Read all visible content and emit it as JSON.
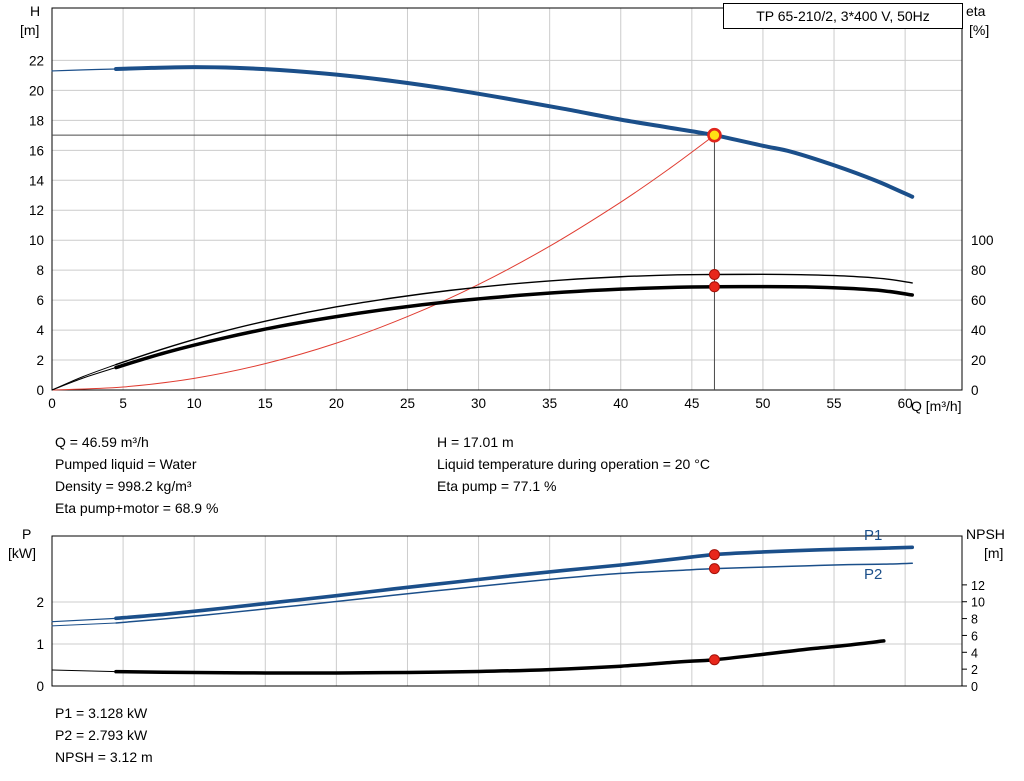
{
  "title_box": {
    "text": "TP 65-210/2, 3*400 V, 50Hz"
  },
  "annotations": {
    "col1": [
      "Q = 46.59 m³/h",
      "Pumped liquid = Water",
      "Density = 998.2 kg/m³",
      "Eta pump+motor = 68.9 %"
    ],
    "col2": [
      "H = 17.01 m",
      "Liquid temperature during operation = 20 °C",
      "Eta pump = 77.1 %"
    ],
    "bottom": [
      "P1 = 3.128 kW",
      "P2 = 2.793 kW",
      "NPSH = 3.12 m"
    ]
  },
  "chart_data": [
    {
      "type": "line",
      "name": "qh-efficiency-chart",
      "title": "TP 65-210/2, 3*400 V, 50Hz",
      "xlabel": "Q [m³/h]",
      "ylabel_left": [
        "H",
        "[m]"
      ],
      "ylabel_right": [
        "eta",
        "[%]"
      ],
      "xlim": [
        0,
        64
      ],
      "ylim_left": [
        0,
        25.5
      ],
      "ylim_right": [
        0,
        255
      ],
      "x_ticks": [
        0,
        5,
        10,
        15,
        20,
        25,
        30,
        35,
        40,
        45,
        50,
        55,
        60
      ],
      "y_ticks_left": [
        0,
        2,
        4,
        6,
        8,
        10,
        12,
        14,
        16,
        18,
        20,
        22
      ],
      "y_ticks_right": [
        0,
        20,
        40,
        60,
        80,
        100
      ],
      "show_x_labels": true,
      "grid": true,
      "duty_point": {
        "Q": 46.59,
        "H": 17.01,
        "eta_pump": 77.1,
        "eta_pump_motor": 68.9
      },
      "series": [
        {
          "name": "head-curve-lead",
          "axis": "left",
          "color": "#1b4f8a",
          "width": 1.2,
          "points": [
            [
              0,
              21.3
            ],
            [
              2.2,
              21.37
            ],
            [
              4.5,
              21.43
            ]
          ]
        },
        {
          "name": "head-curve",
          "axis": "left",
          "color": "#1b4f8a",
          "width": 4,
          "points": [
            [
              4.5,
              21.43
            ],
            [
              7,
              21.5
            ],
            [
              10,
              21.55
            ],
            [
              13,
              21.5
            ],
            [
              16,
              21.36
            ],
            [
              20,
              21.05
            ],
            [
              24,
              20.62
            ],
            [
              28,
              20.08
            ],
            [
              32,
              19.45
            ],
            [
              36,
              18.77
            ],
            [
              40,
              18.05
            ],
            [
              43.5,
              17.5
            ],
            [
              46.59,
              17.01
            ],
            [
              50,
              16.3
            ],
            [
              52,
              15.9
            ],
            [
              55,
              15.0
            ],
            [
              58,
              13.95
            ],
            [
              60.5,
              12.9
            ]
          ]
        },
        {
          "name": "system-curve",
          "axis": "left",
          "color": "#e03c31",
          "width": 1,
          "points": [
            [
              0,
              0
            ],
            [
              5,
              0.2
            ],
            [
              10,
              0.78
            ],
            [
              15,
              1.76
            ],
            [
              20,
              3.13
            ],
            [
              25,
              4.9
            ],
            [
              30,
              7.05
            ],
            [
              35,
              9.6
            ],
            [
              40,
              12.54
            ],
            [
              43.5,
              14.83
            ],
            [
              46.59,
              17.01
            ]
          ]
        },
        {
          "name": "eta-pump-curve-lead",
          "axis": "right",
          "color": "#000000",
          "width": 1,
          "points": [
            [
              0,
              0
            ],
            [
              2.2,
              9
            ],
            [
              4.5,
              17
            ]
          ]
        },
        {
          "name": "eta-pump-curve",
          "axis": "right",
          "color": "#000000",
          "width": 1.4,
          "points": [
            [
              4.5,
              17
            ],
            [
              8,
              28
            ],
            [
              12,
              39
            ],
            [
              16,
              48
            ],
            [
              20,
              55.5
            ],
            [
              24,
              61.5
            ],
            [
              28,
              66.5
            ],
            [
              32,
              70.5
            ],
            [
              36,
              73.5
            ],
            [
              40,
              75.6
            ],
            [
              44,
              76.9
            ],
            [
              46.59,
              77.1
            ],
            [
              50,
              77.2
            ],
            [
              53,
              76.9
            ],
            [
              56,
              76
            ],
            [
              58.5,
              74.3
            ],
            [
              60.5,
              71.5
            ]
          ]
        },
        {
          "name": "eta-pump-motor-curve-lead",
          "axis": "right",
          "color": "#000000",
          "width": 1,
          "points": [
            [
              0,
              0
            ],
            [
              2.2,
              8
            ],
            [
              4.5,
              15
            ]
          ]
        },
        {
          "name": "eta-pump-motor-curve",
          "axis": "right",
          "color": "#000000",
          "width": 3.5,
          "points": [
            [
              4.5,
              15
            ],
            [
              8,
              25
            ],
            [
              12,
              34.5
            ],
            [
              16,
              42.5
            ],
            [
              20,
              49
            ],
            [
              24,
              54.5
            ],
            [
              28,
              59
            ],
            [
              32,
              62.5
            ],
            [
              36,
              65.3
            ],
            [
              40,
              67.3
            ],
            [
              44,
              68.6
            ],
            [
              46.59,
              68.9
            ],
            [
              50,
              69
            ],
            [
              53,
              68.8
            ],
            [
              56,
              67.8
            ],
            [
              58.5,
              66.2
            ],
            [
              60.5,
              63.4
            ]
          ]
        }
      ],
      "ref_lines": [
        {
          "orient": "h",
          "value": 17.01,
          "from": 0,
          "to": 46.59,
          "color": "#4a4a4a",
          "width": 1
        },
        {
          "orient": "v",
          "value": 46.59,
          "from": 0,
          "to": 17.01,
          "color": "#4a4a4a",
          "width": 1
        }
      ],
      "markers": [
        {
          "name": "duty-point-marker",
          "axis": "left",
          "x": 46.59,
          "y": 17.01,
          "r": 6,
          "fill": "#ffe014",
          "stroke": "#e0261c",
          "sw": 2.6
        },
        {
          "name": "eta-pump-point-marker",
          "axis": "right",
          "x": 46.59,
          "y": 77.1,
          "r": 5,
          "fill": "#e8271b",
          "stroke": "#a31109",
          "sw": 1
        },
        {
          "name": "eta-pump-motor-point-marker",
          "axis": "right",
          "x": 46.59,
          "y": 68.9,
          "r": 5,
          "fill": "#e8271b",
          "stroke": "#a31109",
          "sw": 1
        }
      ]
    },
    {
      "type": "line",
      "name": "power-npsh-chart",
      "ylabel_left": [
        "P",
        "[kW]"
      ],
      "ylabel_right": [
        "NPSH",
        "[m]"
      ],
      "xlim": [
        0,
        64
      ],
      "ylim_left": [
        0,
        3.57
      ],
      "ylim_right": [
        0,
        17.8
      ],
      "x_ticks": [
        0,
        5,
        10,
        15,
        20,
        25,
        30,
        35,
        40,
        45,
        50,
        55,
        60
      ],
      "y_ticks_left": [
        0,
        1,
        2
      ],
      "y_ticks_right": [
        0,
        2,
        4,
        6,
        8,
        10,
        12
      ],
      "show_x_labels": false,
      "right_tick_marks": true,
      "grid": true,
      "values": {
        "P1": 3.128,
        "P2": 2.793,
        "NPSH": 3.12
      },
      "curve_labels": [
        {
          "text": "P1"
        },
        {
          "text": "P2"
        }
      ],
      "series": [
        {
          "name": "p1-curve-lead",
          "axis": "left",
          "color": "#1b4f8a",
          "width": 1.2,
          "points": [
            [
              0,
              1.53
            ],
            [
              4.5,
              1.61
            ]
          ]
        },
        {
          "name": "p1-curve",
          "axis": "left",
          "color": "#1b4f8a",
          "width": 3.6,
          "points": [
            [
              4.5,
              1.61
            ],
            [
              8,
              1.71
            ],
            [
              12,
              1.85
            ],
            [
              16,
              2.0
            ],
            [
              20,
              2.15
            ],
            [
              24,
              2.31
            ],
            [
              28,
              2.46
            ],
            [
              32,
              2.61
            ],
            [
              36,
              2.75
            ],
            [
              40,
              2.88
            ],
            [
              44,
              3.03
            ],
            [
              46.59,
              3.128
            ],
            [
              50,
              3.19
            ],
            [
              53,
              3.23
            ],
            [
              56,
              3.26
            ],
            [
              58.5,
              3.28
            ],
            [
              60.5,
              3.3
            ]
          ]
        },
        {
          "name": "p2-curve-lead",
          "axis": "left",
          "color": "#1b4f8a",
          "width": 1,
          "points": [
            [
              0,
              1.43
            ],
            [
              4.5,
              1.5
            ]
          ]
        },
        {
          "name": "p2-curve",
          "axis": "left",
          "color": "#1b4f8a",
          "width": 1.5,
          "points": [
            [
              4.5,
              1.5
            ],
            [
              8,
              1.6
            ],
            [
              12,
              1.73
            ],
            [
              16,
              1.87
            ],
            [
              20,
              2.01
            ],
            [
              24,
              2.16
            ],
            [
              28,
              2.3
            ],
            [
              32,
              2.44
            ],
            [
              36,
              2.57
            ],
            [
              40,
              2.68
            ],
            [
              44,
              2.75
            ],
            [
              46.59,
              2.793
            ],
            [
              50,
              2.83
            ],
            [
              53,
              2.86
            ],
            [
              56,
              2.89
            ],
            [
              58.5,
              2.9
            ],
            [
              60.5,
              2.92
            ]
          ]
        },
        {
          "name": "npsh-curve-lead",
          "axis": "right",
          "color": "#000000",
          "width": 1,
          "points": [
            [
              0,
              1.9
            ],
            [
              4.5,
              1.7
            ]
          ]
        },
        {
          "name": "npsh-curve",
          "axis": "right",
          "color": "#000000",
          "width": 3.5,
          "points": [
            [
              4.5,
              1.7
            ],
            [
              10,
              1.6
            ],
            [
              15,
              1.55
            ],
            [
              20,
              1.55
            ],
            [
              25,
              1.6
            ],
            [
              30,
              1.72
            ],
            [
              35,
              1.95
            ],
            [
              40,
              2.35
            ],
            [
              44,
              2.85
            ],
            [
              46.59,
              3.12
            ],
            [
              50,
              3.75
            ],
            [
              53,
              4.35
            ],
            [
              56,
              4.85
            ],
            [
              58.5,
              5.35
            ]
          ]
        }
      ],
      "markers": [
        {
          "name": "p1-point-marker",
          "axis": "left",
          "x": 46.59,
          "y": 3.128,
          "r": 5,
          "fill": "#e8271b",
          "stroke": "#a31109",
          "sw": 1
        },
        {
          "name": "p2-point-marker",
          "axis": "left",
          "x": 46.59,
          "y": 2.793,
          "r": 5,
          "fill": "#e8271b",
          "stroke": "#a31109",
          "sw": 1
        },
        {
          "name": "npsh-point-marker",
          "axis": "right",
          "x": 46.59,
          "y": 3.12,
          "r": 5,
          "fill": "#e8271b",
          "stroke": "#a31109",
          "sw": 1
        }
      ]
    }
  ]
}
